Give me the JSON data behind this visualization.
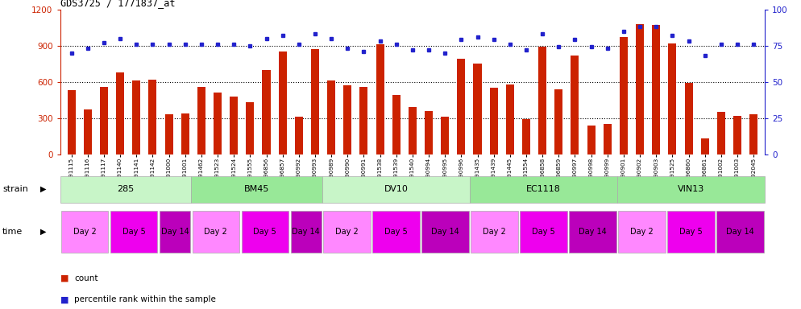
{
  "title": "GDS3725 / 1771837_at",
  "samples": [
    "GSM291115",
    "GSM291116",
    "GSM291117",
    "GSM291140",
    "GSM291141",
    "GSM291142",
    "GSM291000",
    "GSM291001",
    "GSM291462",
    "GSM291523",
    "GSM291524",
    "GSM291555",
    "GSM296856",
    "GSM296857",
    "GSM290992",
    "GSM290993",
    "GSM290989",
    "GSM290990",
    "GSM290991",
    "GSM291538",
    "GSM291539",
    "GSM291540",
    "GSM290994",
    "GSM290995",
    "GSM290996",
    "GSM291435",
    "GSM291439",
    "GSM291445",
    "GSM291554",
    "GSM296858",
    "GSM296859",
    "GSM290997",
    "GSM290998",
    "GSM290999",
    "GSM290901",
    "GSM290902",
    "GSM290903",
    "GSM291525",
    "GSM296860",
    "GSM296861",
    "GSM291002",
    "GSM291003",
    "GSM292045"
  ],
  "counts": [
    530,
    370,
    560,
    680,
    610,
    620,
    330,
    340,
    560,
    510,
    480,
    430,
    700,
    850,
    310,
    870,
    610,
    570,
    560,
    910,
    490,
    390,
    360,
    310,
    790,
    750,
    550,
    580,
    290,
    890,
    540,
    820,
    240,
    250,
    970,
    1080,
    1070,
    920,
    590,
    130,
    350,
    320,
    330
  ],
  "percentiles": [
    70,
    73,
    77,
    80,
    76,
    76,
    76,
    76,
    76,
    76,
    76,
    75,
    80,
    82,
    76,
    83,
    80,
    73,
    71,
    78,
    76,
    72,
    72,
    70,
    79,
    81,
    79,
    76,
    72,
    83,
    74,
    79,
    74,
    73,
    85,
    88,
    88,
    82,
    78,
    68,
    76,
    76,
    76
  ],
  "strains": [
    {
      "label": "285",
      "start": 0,
      "end": 8,
      "color": "#c8f5c8"
    },
    {
      "label": "BM45",
      "start": 8,
      "end": 16,
      "color": "#98e898"
    },
    {
      "label": "DV10",
      "start": 16,
      "end": 25,
      "color": "#c8f5c8"
    },
    {
      "label": "EC1118",
      "start": 25,
      "end": 34,
      "color": "#98e898"
    },
    {
      "label": "VIN13",
      "start": 34,
      "end": 43,
      "color": "#98e898"
    }
  ],
  "times": [
    {
      "label": "Day 2",
      "start": 0,
      "end": 3,
      "color": "#ff88ff"
    },
    {
      "label": "Day 5",
      "start": 3,
      "end": 6,
      "color": "#ee00ee"
    },
    {
      "label": "Day 14",
      "start": 6,
      "end": 8,
      "color": "#bb00bb"
    },
    {
      "label": "Day 2",
      "start": 8,
      "end": 11,
      "color": "#ff88ff"
    },
    {
      "label": "Day 5",
      "start": 11,
      "end": 14,
      "color": "#ee00ee"
    },
    {
      "label": "Day 14",
      "start": 14,
      "end": 16,
      "color": "#bb00bb"
    },
    {
      "label": "Day 2",
      "start": 16,
      "end": 19,
      "color": "#ff88ff"
    },
    {
      "label": "Day 5",
      "start": 19,
      "end": 22,
      "color": "#ee00ee"
    },
    {
      "label": "Day 14",
      "start": 22,
      "end": 25,
      "color": "#bb00bb"
    },
    {
      "label": "Day 2",
      "start": 25,
      "end": 28,
      "color": "#ff88ff"
    },
    {
      "label": "Day 5",
      "start": 28,
      "end": 31,
      "color": "#ee00ee"
    },
    {
      "label": "Day 14",
      "start": 31,
      "end": 34,
      "color": "#bb00bb"
    },
    {
      "label": "Day 2",
      "start": 34,
      "end": 37,
      "color": "#ff88ff"
    },
    {
      "label": "Day 5",
      "start": 37,
      "end": 40,
      "color": "#ee00ee"
    },
    {
      "label": "Day 14",
      "start": 40,
      "end": 43,
      "color": "#bb00bb"
    }
  ],
  "bar_color": "#cc2200",
  "dot_color": "#2222cc",
  "bg_color": "#ffffff",
  "ylim_left": [
    0,
    1200
  ],
  "ylim_right": [
    0,
    100
  ],
  "yticks_left": [
    0,
    300,
    600,
    900,
    1200
  ],
  "yticks_right": [
    0,
    25,
    50,
    75,
    100
  ],
  "grid_values": [
    300,
    600,
    900
  ]
}
